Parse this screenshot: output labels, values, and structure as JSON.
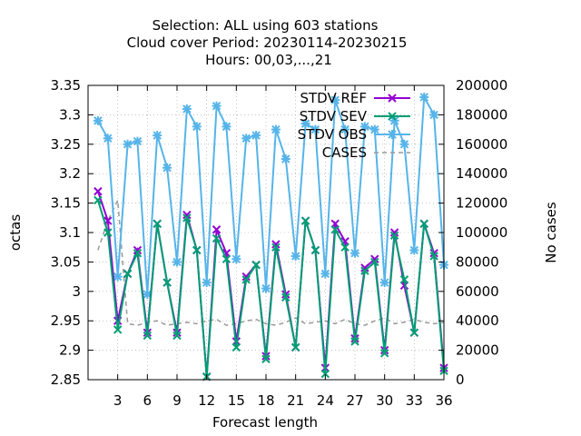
{
  "chart_data": {
    "type": "line",
    "title_lines": [
      "Selection: ALL using   603 stations",
      "Cloud cover   Period: 20230114-20230215",
      "Hours:  00,03,...,21"
    ],
    "xlabel": "Forecast length",
    "ylabel": "octas",
    "y2label": "No cases",
    "xlim": [
      0,
      36
    ],
    "ylim": [
      2.85,
      3.35
    ],
    "y2lim": [
      0,
      200000
    ],
    "xticks": [
      3,
      6,
      9,
      12,
      15,
      18,
      21,
      24,
      27,
      30,
      33,
      36
    ],
    "yticks": [
      "2.85",
      "2.9",
      "2.95",
      "3",
      "3.05",
      "3.1",
      "3.15",
      "3.2",
      "3.25",
      "3.3",
      "3.35"
    ],
    "y2ticks": [
      "0",
      "20000",
      "40000",
      "60000",
      "80000",
      "100000",
      "120000",
      "140000",
      "160000",
      "180000",
      "200000"
    ],
    "x": [
      1,
      2,
      3,
      4,
      5,
      6,
      7,
      8,
      9,
      10,
      11,
      12,
      13,
      14,
      15,
      16,
      17,
      18,
      19,
      20,
      21,
      22,
      23,
      24,
      25,
      26,
      27,
      28,
      29,
      30,
      31,
      32,
      33,
      34,
      35,
      36
    ],
    "series": [
      {
        "name": "STDV REF",
        "color": "#9400d3",
        "marker": "x",
        "axis": "y",
        "values": [
          3.17,
          3.12,
          2.95,
          3.03,
          3.07,
          2.93,
          3.115,
          3.015,
          2.93,
          3.13,
          3.07,
          2.855,
          3.105,
          3.065,
          2.915,
          3.025,
          3.045,
          2.89,
          3.08,
          2.995,
          2.905,
          3.12,
          3.07,
          2.87,
          3.115,
          3.085,
          2.92,
          3.04,
          3.055,
          2.9,
          3.1,
          3.01,
          2.93,
          3.115,
          3.065,
          2.87
        ]
      },
      {
        "name": "STDV SEV",
        "color": "#009e73",
        "marker": "x",
        "axis": "y",
        "values": [
          3.155,
          3.1,
          2.935,
          3.03,
          3.065,
          2.925,
          3.115,
          3.015,
          2.925,
          3.125,
          3.07,
          2.855,
          3.09,
          3.055,
          2.905,
          3.02,
          3.045,
          2.885,
          3.075,
          2.99,
          2.905,
          3.12,
          3.07,
          2.86,
          3.105,
          3.075,
          2.915,
          3.035,
          3.05,
          2.895,
          3.095,
          3.02,
          2.93,
          3.115,
          3.06,
          2.865
        ]
      },
      {
        "name": "STDV OBS",
        "color": "#56b4e9",
        "marker": "*",
        "axis": "y",
        "values": [
          3.29,
          3.26,
          3.025,
          3.25,
          3.255,
          2.995,
          3.265,
          3.21,
          3.05,
          3.31,
          3.28,
          3.015,
          3.315,
          3.28,
          3.055,
          3.26,
          3.265,
          3.005,
          3.275,
          3.225,
          3.06,
          3.285,
          3.275,
          3.03,
          3.325,
          3.275,
          3.065,
          3.28,
          3.275,
          3.015,
          3.29,
          3.25,
          3.07,
          3.33,
          3.3,
          3.045
        ]
      },
      {
        "name": "CASES",
        "color": "#999999",
        "marker": "none",
        "dashed": true,
        "axis": "y2",
        "values": [
          88000,
          108000,
          122000,
          38000,
          37000,
          39000,
          40000,
          37000,
          38000,
          39000,
          38000,
          40000,
          41000,
          37000,
          38000,
          40000,
          41000,
          38000,
          37000,
          39000,
          42000,
          38000,
          39000,
          40000,
          38000,
          41000,
          38000,
          37000,
          40000,
          42000,
          38000,
          39000,
          41000,
          39000,
          38000,
          39000
        ]
      }
    ],
    "legend_position": "top-right",
    "grid": true
  }
}
